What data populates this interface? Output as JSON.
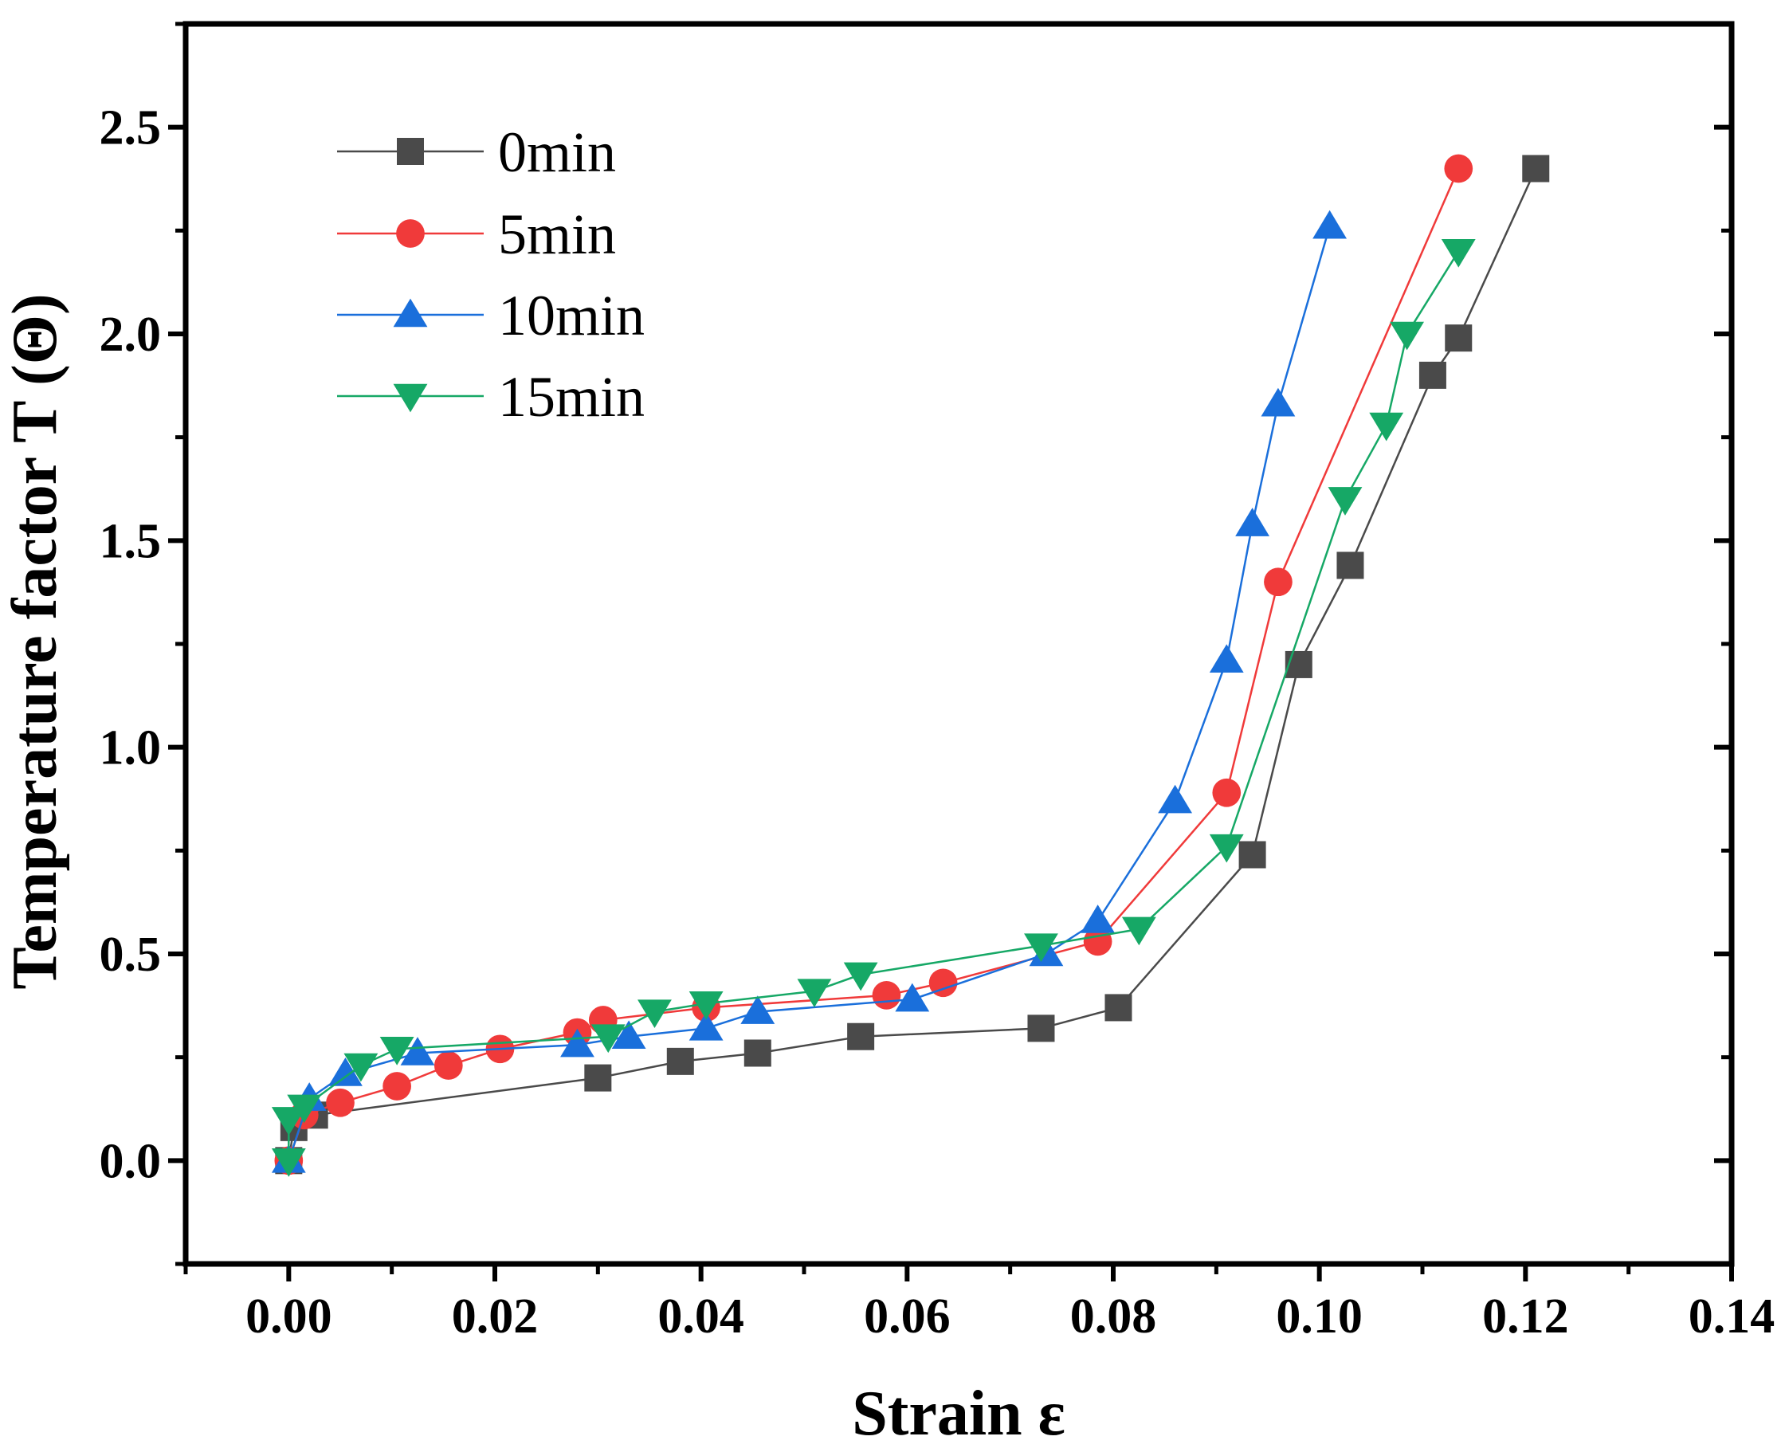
{
  "chart_data": {
    "type": "line",
    "title": "",
    "xlabel": "Strain ε",
    "ylabel": "Temperature factor T (Θ)",
    "xlim": [
      -0.01,
      0.14
    ],
    "ylim": [
      -0.25,
      2.75
    ],
    "xticks": [
      0.0,
      0.02,
      0.04,
      0.06,
      0.08,
      0.1,
      0.12,
      0.14
    ],
    "xtick_labels": [
      "0.00",
      "0.02",
      "0.04",
      "0.06",
      "0.08",
      "0.10",
      "0.12",
      "0.14"
    ],
    "yticks": [
      0.0,
      0.5,
      1.0,
      1.5,
      2.0,
      2.5
    ],
    "ytick_labels": [
      "0.0",
      "0.5",
      "1.0",
      "1.5",
      "2.0",
      "2.5"
    ],
    "grid": false,
    "legend_position": "top-left",
    "series": [
      {
        "name": "0min",
        "color": "#4a4a4a",
        "marker": "square",
        "x": [
          0.0,
          0.0005,
          0.0025,
          0.03,
          0.038,
          0.0455,
          0.0555,
          0.073,
          0.0805,
          0.0935,
          0.098,
          0.103,
          0.111,
          0.1135,
          0.121
        ],
        "y": [
          0.0,
          0.08,
          0.11,
          0.2,
          0.24,
          0.26,
          0.3,
          0.32,
          0.37,
          0.74,
          1.2,
          1.44,
          1.9,
          1.99,
          2.4
        ]
      },
      {
        "name": "5min",
        "color": "#f03a3a",
        "marker": "circle",
        "x": [
          0.0,
          0.0015,
          0.005,
          0.0105,
          0.0155,
          0.0205,
          0.028,
          0.0305,
          0.0405,
          0.058,
          0.0635,
          0.0785,
          0.091,
          0.096,
          0.1135
        ],
        "y": [
          0.0,
          0.11,
          0.14,
          0.18,
          0.23,
          0.27,
          0.31,
          0.34,
          0.37,
          0.4,
          0.43,
          0.53,
          0.89,
          1.4,
          2.4
        ]
      },
      {
        "name": "10min",
        "color": "#1a6fdb",
        "marker": "triangle-up",
        "x": [
          0.0,
          0.002,
          0.0055,
          0.0125,
          0.028,
          0.033,
          0.0405,
          0.0455,
          0.0605,
          0.0735,
          0.0785,
          0.086,
          0.091,
          0.0935,
          0.096,
          0.101
        ],
        "y": [
          0.0,
          0.15,
          0.21,
          0.26,
          0.28,
          0.3,
          0.32,
          0.36,
          0.39,
          0.5,
          0.58,
          0.87,
          1.21,
          1.54,
          1.83,
          2.26
        ]
      },
      {
        "name": "15min",
        "color": "#16a866",
        "marker": "triangle-down",
        "x": [
          0.0,
          0.0,
          0.0015,
          0.007,
          0.0105,
          0.031,
          0.0355,
          0.0405,
          0.051,
          0.0555,
          0.073,
          0.0825,
          0.091,
          0.1025,
          0.1065,
          0.1085,
          0.1135
        ],
        "y": [
          0.0,
          0.1,
          0.13,
          0.23,
          0.27,
          0.3,
          0.36,
          0.38,
          0.41,
          0.45,
          0.52,
          0.56,
          0.76,
          1.6,
          1.78,
          2.0,
          2.2
        ]
      }
    ]
  }
}
